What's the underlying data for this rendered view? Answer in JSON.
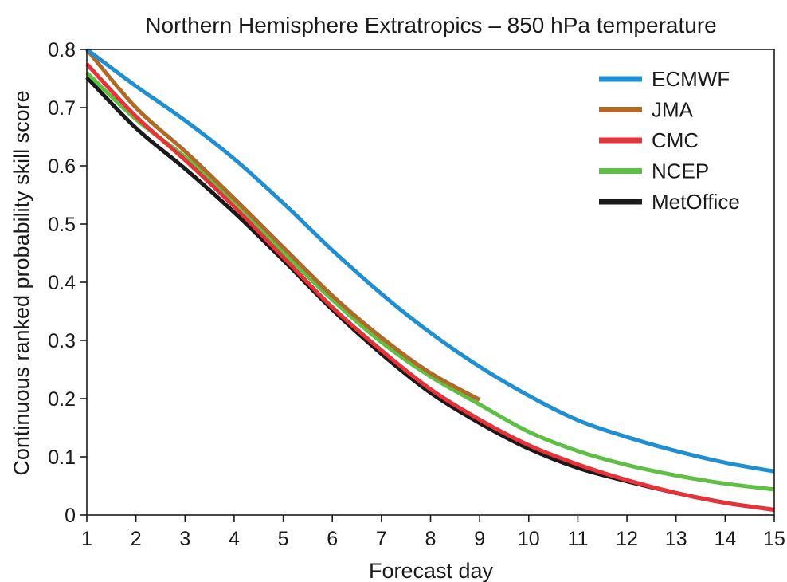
{
  "chart_data": {
    "type": "line",
    "title": "Northern Hemisphere Extratropics – 850 hPa temperature",
    "xlabel": "Forecast day",
    "ylabel": "Continuous ranked probability skill score",
    "xlim": [
      1,
      15
    ],
    "ylim": [
      0,
      0.8
    ],
    "x_ticks": [
      "1",
      "2",
      "3",
      "4",
      "5",
      "6",
      "7",
      "8",
      "9",
      "10",
      "11",
      "12",
      "13",
      "14",
      "15"
    ],
    "y_ticks": [
      "0",
      "0.1",
      "0.2",
      "0.3",
      "0.4",
      "0.5",
      "0.6",
      "0.7",
      "0.8"
    ],
    "grid": false,
    "legend_position": "top-right",
    "series": [
      {
        "name": "ECMWF",
        "color": "#1f8fd1",
        "x": [
          1,
          2,
          3,
          4,
          5,
          6,
          7,
          8,
          9,
          10,
          11,
          12,
          13,
          14,
          15
        ],
        "y": [
          0.8,
          0.737,
          0.678,
          0.612,
          0.536,
          0.455,
          0.38,
          0.313,
          0.255,
          0.205,
          0.163,
          0.134,
          0.11,
          0.09,
          0.075
        ]
      },
      {
        "name": "JMA",
        "color": "#b06a26",
        "x": [
          1,
          2,
          3,
          4,
          5,
          6,
          7,
          8,
          9
        ],
        "y": [
          0.8,
          0.7,
          0.625,
          0.544,
          0.46,
          0.377,
          0.305,
          0.244,
          0.198
        ]
      },
      {
        "name": "CMC",
        "color": "#e8323a",
        "x": [
          1,
          2,
          3,
          4,
          5,
          6,
          7,
          8,
          9,
          10,
          11,
          12,
          13,
          14,
          15
        ],
        "y": [
          0.775,
          0.685,
          0.61,
          0.53,
          0.443,
          0.357,
          0.283,
          0.216,
          0.164,
          0.12,
          0.087,
          0.06,
          0.038,
          0.021,
          0.009
        ]
      },
      {
        "name": "NCEP",
        "color": "#5fbf45",
        "x": [
          1,
          2,
          3,
          4,
          5,
          6,
          7,
          8,
          9,
          10,
          11,
          12,
          13,
          14,
          15
        ],
        "y": [
          0.76,
          0.68,
          0.615,
          0.54,
          0.452,
          0.37,
          0.297,
          0.238,
          0.19,
          0.143,
          0.11,
          0.086,
          0.068,
          0.054,
          0.044
        ]
      },
      {
        "name": "MetOffice",
        "color": "#1a1a1a",
        "x": [
          1,
          2,
          3,
          4,
          5,
          6,
          7,
          8,
          9,
          10,
          11,
          12,
          13,
          14,
          15
        ],
        "y": [
          0.752,
          0.665,
          0.595,
          0.52,
          0.438,
          0.353,
          0.277,
          0.21,
          0.158,
          0.114,
          0.081,
          0.058,
          0.038,
          0.021,
          0.009
        ]
      }
    ]
  }
}
